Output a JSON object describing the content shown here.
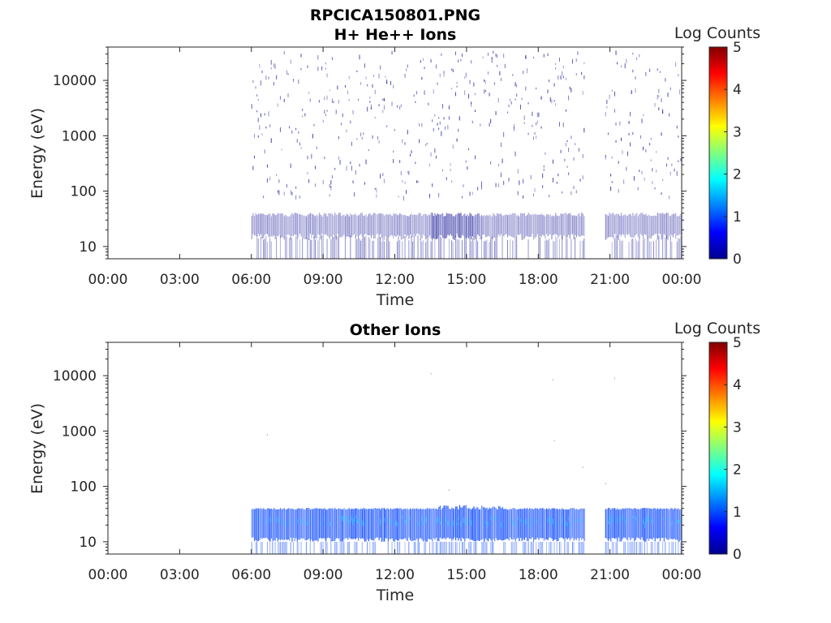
{
  "figure": {
    "title_line1": "RPCICA150801.PNG"
  },
  "colors": {
    "axis": "#262626",
    "frame": "#262626",
    "spectrogram_dark": "#00008f",
    "spectrogram_mid": "#0040ff",
    "spectrogram_cyan": "#20c8ff"
  },
  "chart_data": [
    {
      "type": "heatmap",
      "title": "H+ He++ Ions",
      "xlabel": "Time",
      "ylabel": "Energy (eV)",
      "x_ticks": [
        "00:00",
        "03:00",
        "06:00",
        "09:00",
        "12:00",
        "15:00",
        "18:00",
        "21:00",
        "00:00"
      ],
      "y_ticks": [
        "10",
        "100",
        "1000",
        "10000"
      ],
      "y_scale": "log",
      "ylim": [
        6,
        40000
      ],
      "xlim_hours": [
        0,
        24
      ],
      "colorbar": {
        "label": "Log Counts",
        "ticks": [
          "0",
          "1",
          "2",
          "3",
          "4",
          "5"
        ],
        "range": [
          0,
          5
        ],
        "colormap": "jet"
      },
      "data_intervals_hours": [
        [
          6.0,
          19.95
        ],
        [
          20.8,
          24.0
        ]
      ],
      "dominant_energy_band_eV": [
        17,
        35
      ],
      "peak_activity_hours": [
        13.5,
        15.5
      ],
      "max_log_counts_estimate": 1.0,
      "grid": false
    },
    {
      "type": "heatmap",
      "title": "Other Ions",
      "xlabel": "Time",
      "ylabel": "Energy (eV)",
      "x_ticks": [
        "00:00",
        "03:00",
        "06:00",
        "09:00",
        "12:00",
        "15:00",
        "18:00",
        "21:00",
        "00:00"
      ],
      "y_ticks": [
        "10",
        "100",
        "1000",
        "10000"
      ],
      "y_scale": "log",
      "ylim": [
        6,
        40000
      ],
      "xlim_hours": [
        0,
        24
      ],
      "colorbar": {
        "label": "Log Counts",
        "ticks": [
          "0",
          "1",
          "2",
          "3",
          "4",
          "5"
        ],
        "range": [
          0,
          5
        ],
        "colormap": "jet"
      },
      "data_intervals_hours": [
        [
          6.0,
          19.95
        ],
        [
          20.8,
          24.0
        ]
      ],
      "dominant_energy_band_eV": [
        10,
        38
      ],
      "peak_activity_hours": [
        13.8,
        16.5
      ],
      "max_log_counts_estimate": 2.0,
      "grid": false
    }
  ]
}
